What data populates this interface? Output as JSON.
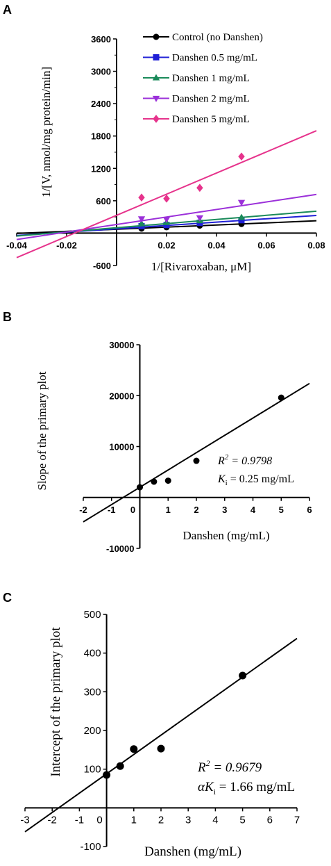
{
  "chart_data": [
    {
      "panel": "A",
      "type": "line",
      "xlabel": "1/[Rivaroxaban, μM]",
      "ylabel": "1/[V, nmol/mg protein/min]",
      "xlim": [
        -0.04,
        0.08
      ],
      "ylim": [
        -600,
        3600
      ],
      "xticks": [
        "-0.04",
        "-0.02",
        "0.02",
        "0.04",
        "0.06",
        "0.08"
      ],
      "yticks": [
        "-600",
        "600",
        "1200",
        "1800",
        "2400",
        "3000",
        "3600"
      ],
      "legend_position": "top-right",
      "x": [
        0.01,
        0.02,
        0.0333,
        0.05
      ],
      "series": [
        {
          "name": "Control (no Danshen)",
          "color": "#000000",
          "marker": "circle",
          "values": [
            85,
            110,
            140,
            170
          ],
          "fit": [
            72,
            1960
          ]
        },
        {
          "name": "Danshen 0.5 mg/mL",
          "color": "#1f1fd6",
          "marker": "square",
          "values": [
            130,
            150,
            190,
            240
          ],
          "fit": [
            80,
            3100
          ]
        },
        {
          "name": "Danshen 1 mg/mL",
          "color": "#1a8a5a",
          "marker": "triangle-up",
          "values": [
            175,
            195,
            230,
            290
          ],
          "fit": [
            100,
            3840
          ]
        },
        {
          "name": "Danshen 2 mg/mL",
          "color": "#9b30d9",
          "marker": "triangle-down",
          "values": [
            265,
            255,
            285,
            570
          ],
          "fit": [
            160,
            6960
          ]
        },
        {
          "name": "Danshen 5 mg/mL",
          "color": "#e6338c",
          "marker": "diamond",
          "values": [
            660,
            640,
            840,
            1420
          ],
          "fit": [
            330,
            19600
          ]
        }
      ]
    },
    {
      "panel": "B",
      "type": "scatter",
      "xlabel": "Danshen (mg/mL)",
      "ylabel": "Slope of the primary plot",
      "xlim": [
        -2,
        6
      ],
      "ylim": [
        -10000,
        30000
      ],
      "xticks": [
        "-2",
        "-1",
        "0",
        "1",
        "2",
        "3",
        "4",
        "5",
        "6"
      ],
      "yticks": [
        "-10000",
        "10000",
        "20000",
        "30000"
      ],
      "x": [
        0,
        0.5,
        1,
        2,
        5
      ],
      "values": [
        2000,
        3100,
        3300,
        7200,
        19600
      ],
      "fit": {
        "intercept": 2000,
        "slope": 3400,
        "x_from": -2,
        "x_to": 6
      },
      "annotations": [
        "R",
        "2",
        " = 0.9798",
        "K",
        "i",
        " = 0.25 mg/mL"
      ]
    },
    {
      "panel": "C",
      "type": "scatter",
      "xlabel": "Danshen (mg/mL)",
      "ylabel": "Intercept of the primary plot",
      "xlim": [
        -3,
        7
      ],
      "ylim": [
        -100,
        500
      ],
      "xticks": [
        "-3",
        "-2",
        "-1",
        "0",
        "1",
        "2",
        "3",
        "4",
        "5",
        "6",
        "7"
      ],
      "yticks": [
        "-100",
        "100",
        "200",
        "300",
        "400",
        "500"
      ],
      "x": [
        0,
        0.5,
        1,
        2,
        5
      ],
      "values": [
        85,
        108,
        152,
        153,
        342
      ],
      "fit": {
        "intercept": 88,
        "slope": 50,
        "x_from": -3,
        "x_to": 7
      },
      "annotations": [
        "R",
        "2",
        " = 0.9679",
        "αK",
        "i",
        " = 1.66 mg/mL"
      ]
    }
  ],
  "panels": {
    "a": {
      "letter": "A"
    },
    "b": {
      "letter": "B"
    },
    "c": {
      "letter": "C"
    }
  }
}
